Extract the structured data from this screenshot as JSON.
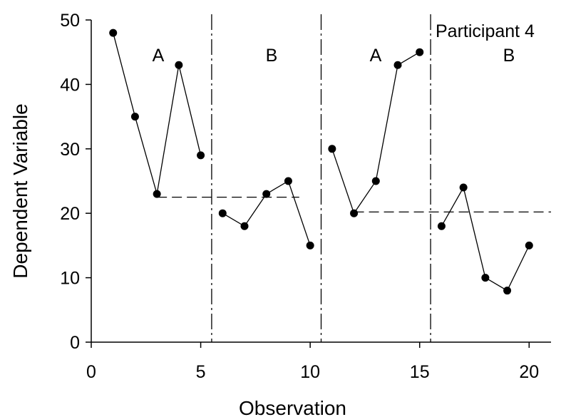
{
  "chart_data": {
    "type": "line",
    "xlabel": "Observation",
    "ylabel": "Dependent Variable",
    "annotation": "Participant 4",
    "xlim": [
      0,
      21
    ],
    "ylim": [
      0,
      50
    ],
    "xticks": [
      0,
      5,
      10,
      15,
      20
    ],
    "yticks": [
      0,
      10,
      20,
      30,
      40,
      50
    ],
    "phases": [
      {
        "label": "A",
        "x": [
          1,
          2,
          3,
          4,
          5
        ],
        "y": [
          48,
          35,
          23,
          43,
          29
        ]
      },
      {
        "label": "B",
        "x": [
          6,
          7,
          8,
          9,
          10
        ],
        "y": [
          20,
          18,
          23,
          25,
          15
        ]
      },
      {
        "label": "A",
        "x": [
          11,
          12,
          13,
          14,
          15
        ],
        "y": [
          30,
          20,
          25,
          43,
          45
        ]
      },
      {
        "label": "B",
        "x": [
          16,
          17,
          18,
          19,
          20
        ],
        "y": [
          18,
          24,
          10,
          8,
          15
        ]
      }
    ],
    "phase_change_lines": [
      5.5,
      10.5,
      15.5
    ],
    "reference_lines": [
      {
        "y": 22.5,
        "x_start": 3,
        "x_end": 9.5
      },
      {
        "y": 20.2,
        "x_start": 12,
        "x_end": 21
      }
    ],
    "grid": false,
    "legend": "none"
  }
}
